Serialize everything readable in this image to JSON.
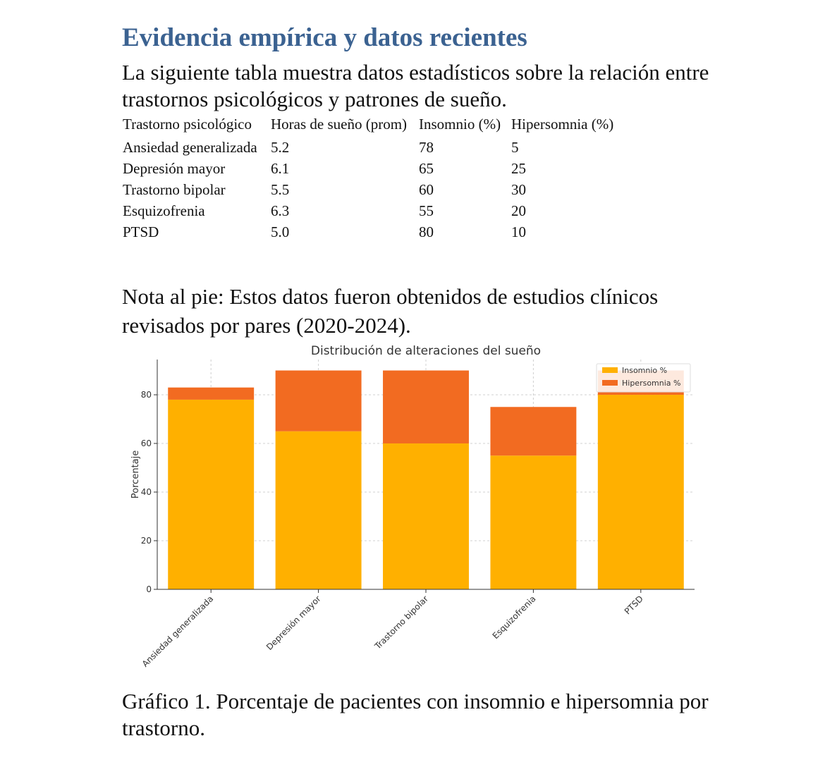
{
  "heading": "Evidencia empírica y datos recientes",
  "intro": "La siguiente tabla muestra datos estadísticos sobre la relación entre trastornos psicológicos y patrones de sueño.",
  "table": {
    "headers": [
      "Trastorno psicológico",
      "Horas de sueño (prom)",
      "Insomnio (%)",
      "Hipersomnia (%)"
    ],
    "rows": [
      [
        "Ansiedad generalizada",
        "5.2",
        "78",
        "5"
      ],
      [
        "Depresión mayor",
        "6.1",
        "65",
        "25"
      ],
      [
        "Trastorno bipolar",
        "5.5",
        "60",
        "30"
      ],
      [
        "Esquizofrenia",
        "6.3",
        "55",
        "20"
      ],
      [
        "PTSD",
        "5.0",
        "80",
        "10"
      ]
    ]
  },
  "footnote": "Nota al pie: Estos datos fueron obtenidos de estudios clínicos revisados por pares (2020-2024).",
  "chart_data": {
    "type": "bar",
    "stacked": true,
    "title": "Distribución de alteraciones del sueño",
    "xlabel": "",
    "ylabel": "Porcentaje",
    "categories": [
      "Ansiedad generalizada",
      "Depresión mayor",
      "Trastorno bipolar",
      "Esquizofrenia",
      "PTSD"
    ],
    "series": [
      {
        "name": "Insomnio %",
        "values": [
          78,
          65,
          60,
          55,
          80
        ],
        "color": "#ffb000"
      },
      {
        "name": "Hipersomnia %",
        "values": [
          5,
          25,
          30,
          20,
          10
        ],
        "color": "#f26b21"
      }
    ],
    "yticks": [
      0,
      20,
      40,
      60,
      80
    ],
    "ylim": [
      0,
      94.5
    ],
    "grid": true,
    "legend_position": "top-right"
  },
  "caption": "Gráfico 1. Porcentaje de pacientes con insomnio e hipersomnia por trastorno."
}
